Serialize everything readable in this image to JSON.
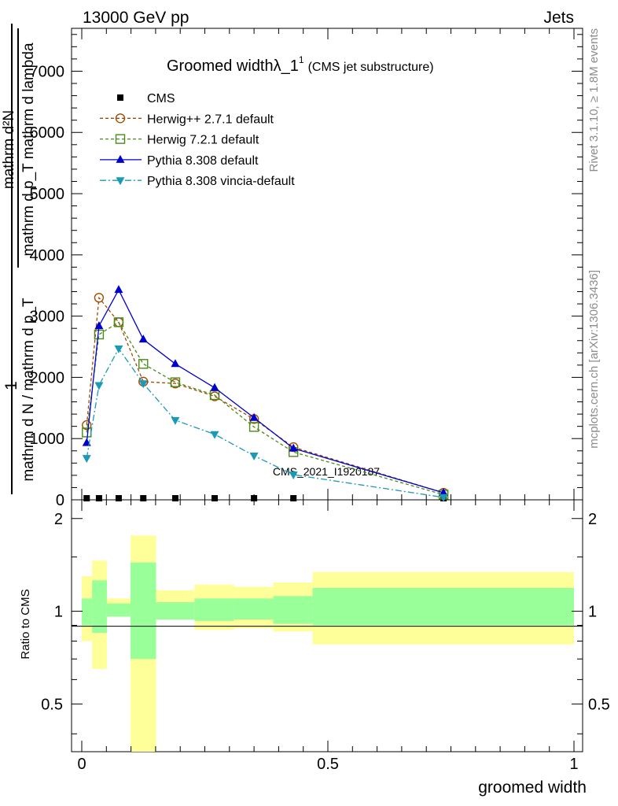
{
  "header": {
    "energy_label": "13000 GeV pp",
    "category_label": "Jets"
  },
  "side_labels": {
    "rivet": "Rivet 3.1.10, ≥ 1.8M events",
    "mcplots": "mcplots.cern.ch [arXiv:1306.3436]"
  },
  "watermark": "CMS_2021_I1920187",
  "chart_data": {
    "type": "line",
    "title_main": "Groomed widthλ_1",
    "title_sup": "1",
    "title_sub": "(CMS jet substructure)",
    "xlabel": "groomed width",
    "ylabel_top_num": "mathrm d²N",
    "ylabel_top_den": "mathrm d p_T mathrm d lambda",
    "ylabel_one": "1",
    "ylabel_bottom": "mathrm d N / mathrm d p_T",
    "ratio_ylabel": "Ratio to CMS",
    "xlim": [
      0,
      1
    ],
    "ylim": [
      0,
      7700
    ],
    "ratio_ylim": [
      0.35,
      2.3
    ],
    "x_ticks": [
      {
        "value": 0,
        "label": "0"
      },
      {
        "value": 0.5,
        "label": "0.5"
      },
      {
        "value": 1,
        "label": "1"
      }
    ],
    "y_ticks": [
      {
        "value": 0,
        "label": "0"
      },
      {
        "value": 1000,
        "label": "1000"
      },
      {
        "value": 2000,
        "label": "2000"
      },
      {
        "value": 3000,
        "label": "3000"
      },
      {
        "value": 4000,
        "label": "4000"
      },
      {
        "value": 5000,
        "label": "5000"
      },
      {
        "value": 6000,
        "label": "6000"
      },
      {
        "value": 7000,
        "label": "7000"
      }
    ],
    "ratio_ticks": [
      {
        "value": 0.5,
        "label": "0.5"
      },
      {
        "value": 1,
        "label": "1"
      },
      {
        "value": 2,
        "label": "2"
      }
    ],
    "cms_x": [
      0.01,
      0.035,
      0.075,
      0.125,
      0.19,
      0.27,
      0.35,
      0.43,
      0.735
    ],
    "series": [
      {
        "name": "CMS",
        "color": "#000000",
        "marker": "square-filled",
        "x": [
          0.01,
          0.035,
          0.075,
          0.125,
          0.19,
          0.27,
          0.35,
          0.43,
          0.735
        ],
        "values": [
          0,
          0,
          0,
          0,
          0,
          0,
          0,
          0,
          0
        ]
      },
      {
        "name": "Herwig++ 2.7.1 default",
        "color": "#a04a00",
        "marker": "circle-open",
        "dash": "4,3",
        "x": [
          0.01,
          0.035,
          0.075,
          0.125,
          0.19,
          0.27,
          0.35,
          0.43,
          0.735
        ],
        "values": [
          1220,
          3300,
          2900,
          1930,
          1900,
          1690,
          1320,
          860,
          115
        ]
      },
      {
        "name": "Herwig 7.2.1 default",
        "color": "#4a8a1a",
        "marker": "square-open",
        "dash": "4,3",
        "x": [
          0.01,
          0.035,
          0.075,
          0.125,
          0.19,
          0.27,
          0.35,
          0.43,
          0.735
        ],
        "values": [
          1100,
          2700,
          2900,
          2220,
          1920,
          1710,
          1190,
          780,
          85
        ]
      },
      {
        "name": "Pythia 8.308 default",
        "color": "#0000cc",
        "marker": "triangle-up",
        "dash": "",
        "x": [
          0.01,
          0.035,
          0.075,
          0.125,
          0.19,
          0.27,
          0.35,
          0.43,
          0.735
        ],
        "values": [
          930,
          2840,
          3430,
          2620,
          2220,
          1830,
          1340,
          840,
          115
        ]
      },
      {
        "name": "Pythia 8.308 vincia-default",
        "color": "#1a9ab4",
        "marker": "triangle-down",
        "dash": "8,3,2,3",
        "x": [
          0.01,
          0.035,
          0.075,
          0.125,
          0.19,
          0.27,
          0.35,
          0.43,
          0.735
        ],
        "values": [
          680,
          1870,
          2470,
          1900,
          1300,
          1070,
          720,
          410,
          40
        ]
      }
    ],
    "ratio_bands": [
      {
        "x0": 0.0,
        "x1": 0.021,
        "stat": [
          0.9,
          1.1
        ],
        "total": [
          0.8,
          1.3
        ]
      },
      {
        "x0": 0.021,
        "x1": 0.051,
        "stat": [
          0.85,
          1.26
        ],
        "total": [
          0.65,
          1.46
        ]
      },
      {
        "x0": 0.051,
        "x1": 0.099,
        "stat": [
          0.96,
          1.06
        ],
        "total": [
          0.96,
          1.1
        ]
      },
      {
        "x0": 0.099,
        "x1": 0.151,
        "stat": [
          0.7,
          1.44
        ],
        "total": [
          0.35,
          1.76
        ]
      },
      {
        "x0": 0.151,
        "x1": 0.229,
        "stat": [
          0.94,
          1.07
        ],
        "total": [
          0.94,
          1.17
        ]
      },
      {
        "x0": 0.229,
        "x1": 0.309,
        "stat": [
          0.93,
          1.1
        ],
        "total": [
          0.87,
          1.22
        ]
      },
      {
        "x0": 0.309,
        "x1": 0.389,
        "stat": [
          0.94,
          1.1
        ],
        "total": [
          0.88,
          1.2
        ]
      },
      {
        "x0": 0.389,
        "x1": 0.469,
        "stat": [
          0.91,
          1.12
        ],
        "total": [
          0.86,
          1.24
        ]
      },
      {
        "x0": 0.469,
        "x1": 1.0,
        "stat": [
          0.9,
          1.19
        ],
        "total": [
          0.78,
          1.34
        ]
      }
    ],
    "band_colors": {
      "stat": "#99ff99",
      "total": "#ffff99"
    }
  }
}
